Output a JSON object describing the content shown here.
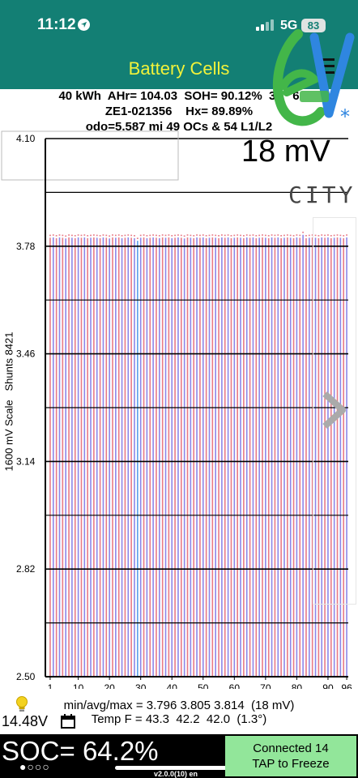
{
  "status_bar": {
    "time": "11:12",
    "network": "5G",
    "battery": "83",
    "icons": [
      "location-arrow-icon",
      "cell-signal-icon"
    ]
  },
  "header": {
    "title": "Battery Cells",
    "menu_icon": "hamburger-menu-icon",
    "colors": {
      "bar": "#137f74",
      "title": "#f2f23a"
    }
  },
  "info": {
    "line1": "40 kWh  AHr= 104.03  SOH= 90.12%  3     6",
    "line2": "ZE1-021356    Hx= 89.89%",
    "line3": "odo=5,587 mi 49 QCs & 54 L1/L2"
  },
  "spread_label": "18 mV",
  "logo": {
    "text": "CITY",
    "icon": "ev-city-logo-icon"
  },
  "chart": {
    "y_axis_title": "1600 mV Scale   Shunts 8421",
    "top_label": "4.10"
  },
  "chart_data": {
    "type": "bar",
    "x": [
      1,
      2,
      3,
      4,
      5,
      6,
      7,
      8,
      9,
      10,
      11,
      12,
      13,
      14,
      15,
      16,
      17,
      18,
      19,
      20,
      21,
      22,
      23,
      24,
      25,
      26,
      27,
      28,
      29,
      30,
      31,
      32,
      33,
      34,
      35,
      36,
      37,
      38,
      39,
      40,
      41,
      42,
      43,
      44,
      45,
      46,
      47,
      48,
      49,
      50,
      51,
      52,
      53,
      54,
      55,
      56,
      57,
      58,
      59,
      60,
      61,
      62,
      63,
      64,
      65,
      66,
      67,
      68,
      69,
      70,
      71,
      72,
      73,
      74,
      75,
      76,
      77,
      78,
      79,
      80,
      81,
      82,
      83,
      84,
      85,
      86,
      87,
      88,
      89,
      90,
      91,
      92,
      93,
      94,
      95,
      96
    ],
    "values": [
      3.805,
      3.806,
      3.804,
      3.806,
      3.805,
      3.803,
      3.806,
      3.805,
      3.804,
      3.806,
      3.805,
      3.806,
      3.804,
      3.805,
      3.806,
      3.805,
      3.804,
      3.806,
      3.805,
      3.803,
      3.806,
      3.805,
      3.806,
      3.804,
      3.805,
      3.806,
      3.805,
      3.804,
      3.796,
      3.805,
      3.806,
      3.804,
      3.805,
      3.806,
      3.805,
      3.804,
      3.806,
      3.805,
      3.806,
      3.804,
      3.805,
      3.806,
      3.805,
      3.803,
      3.806,
      3.805,
      3.804,
      3.806,
      3.805,
      3.806,
      3.804,
      3.805,
      3.806,
      3.805,
      3.804,
      3.806,
      3.805,
      3.806,
      3.804,
      3.805,
      3.806,
      3.805,
      3.804,
      3.806,
      3.805,
      3.806,
      3.804,
      3.805,
      3.806,
      3.805,
      3.804,
      3.806,
      3.805,
      3.806,
      3.804,
      3.805,
      3.806,
      3.805,
      3.804,
      3.806,
      3.805,
      3.814,
      3.804,
      3.805,
      3.806,
      3.805,
      3.804,
      3.806,
      3.805,
      3.806,
      3.804,
      3.805,
      3.806,
      3.805,
      3.804,
      3.806
    ],
    "yticks": [
      "2.50",
      "2.82",
      "3.14",
      "3.46",
      "3.78"
    ],
    "xticks": [
      "1",
      "10",
      "20",
      "30",
      "40",
      "50",
      "60",
      "70",
      "80",
      "90",
      "96"
    ],
    "ylim": [
      2.5,
      4.1
    ],
    "bar_colors": [
      "#e87a86",
      "#8b86e8"
    ],
    "highlight_color": "#5aa0e8",
    "grid": true
  },
  "stats": {
    "minavgmax": "min/avg/max = 3.796 3.805 3.814  (18 mV)",
    "temp": "Temp F = 43.3  42.2  42.0  (1.3°)",
    "voltage": "14.48V"
  },
  "bottom": {
    "soc": "SOC= 64.2%",
    "dots": "●○○○",
    "version": "v2.0.0(10) en",
    "freeze_line1": "Connected 14",
    "freeze_line2": "TAP to Freeze",
    "freeze_color": "#92e69a"
  }
}
